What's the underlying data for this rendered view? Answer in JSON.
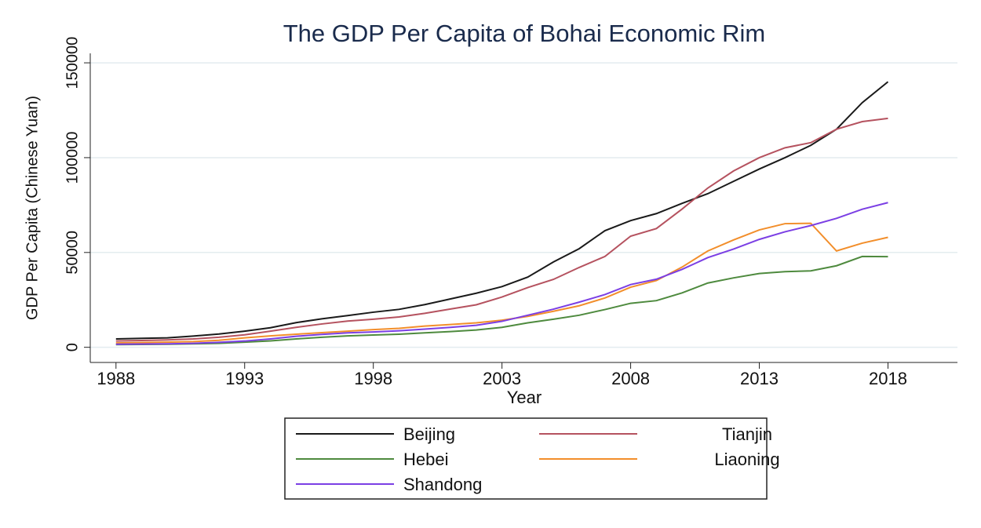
{
  "chart_data": {
    "type": "line",
    "title": "The GDP Per Capita of Bohai Economic Rim",
    "x_label": "Year",
    "y_label": "GDP Per Capita (Chinese Yuan)",
    "x": [
      1988,
      1989,
      1990,
      1991,
      1992,
      1993,
      1994,
      1995,
      1996,
      1997,
      1998,
      1999,
      2000,
      2001,
      2002,
      2003,
      2004,
      2005,
      2006,
      2007,
      2008,
      2009,
      2010,
      2011,
      2012,
      2013,
      2014,
      2015,
      2016,
      2017,
      2018
    ],
    "series": [
      {
        "name": "Beijing",
        "color": "#1a1a1a",
        "values": [
          4400,
          4700,
          5000,
          5900,
          7000,
          8500,
          10300,
          13000,
          15000,
          16700,
          18500,
          20000,
          22500,
          25500,
          28500,
          32000,
          37000,
          45000,
          52000,
          61500,
          66800,
          70500,
          75900,
          81000,
          87500,
          94000,
          100000,
          106500,
          115000,
          129000,
          140000
        ]
      },
      {
        "name": "Tianjin",
        "color": "#b5525f",
        "values": [
          3300,
          3600,
          3900,
          4400,
          5300,
          6600,
          8500,
          10500,
          12300,
          13800,
          14800,
          16000,
          17900,
          20200,
          22400,
          26500,
          31500,
          35800,
          42100,
          47900,
          58600,
          62600,
          72900,
          84000,
          93000,
          100000,
          105200,
          107900,
          115000,
          119000,
          120700
        ]
      },
      {
        "name": "Hebei",
        "color": "#4e8a3e",
        "values": [
          1400,
          1500,
          1600,
          1800,
          2100,
          2700,
          3400,
          4400,
          5300,
          6000,
          6500,
          6900,
          7600,
          8300,
          9100,
          10500,
          12900,
          14800,
          16900,
          19900,
          23200,
          24600,
          28700,
          33900,
          36600,
          38900,
          39900,
          40300,
          43000,
          47900,
          47800
        ]
      },
      {
        "name": "Liaoning",
        "color": "#f28e2b",
        "values": [
          2300,
          2500,
          2700,
          3000,
          3700,
          5000,
          6000,
          6900,
          7700,
          8500,
          9300,
          10000,
          11200,
          12000,
          12900,
          14300,
          16300,
          19000,
          21900,
          26000,
          31700,
          35200,
          42300,
          50800,
          56600,
          61900,
          65200,
          65400,
          50800,
          54900,
          58000
        ]
      },
      {
        "name": "Shandong",
        "color": "#7b3fe4",
        "values": [
          1600,
          1700,
          1800,
          2100,
          2600,
          3300,
          4400,
          5800,
          6800,
          7600,
          8100,
          8700,
          9600,
          10500,
          11600,
          13700,
          16900,
          20100,
          23800,
          27800,
          33100,
          35900,
          41100,
          47300,
          51800,
          56900,
          60900,
          64200,
          68000,
          72800,
          76300
        ]
      }
    ],
    "xlim": [
      1987,
      2020.7
    ],
    "xticks": [
      1988,
      1993,
      1998,
      2003,
      2008,
      2013,
      2018
    ],
    "ylim": [
      -8000,
      155000
    ],
    "yticks": [
      0,
      50000,
      100000,
      150000
    ],
    "grid": true,
    "legend": "bottom"
  }
}
